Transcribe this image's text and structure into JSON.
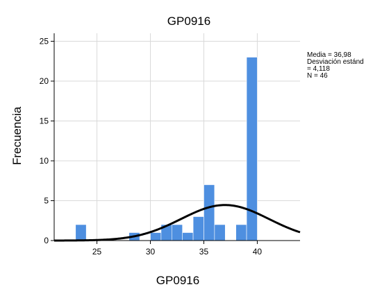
{
  "chart_data": {
    "type": "bar",
    "title": "GP0916",
    "xlabel": "GP0916",
    "ylabel": "Frecuencia",
    "xlim": [
      21,
      44
    ],
    "ylim": [
      0,
      26
    ],
    "bin_width": 1,
    "x_ticks": [
      "25",
      "30",
      "35",
      "40"
    ],
    "y_ticks": [
      "0",
      "5",
      "10",
      "15",
      "20",
      "25"
    ],
    "bins": [
      {
        "start": 23,
        "end": 24,
        "count": 2
      },
      {
        "start": 28,
        "end": 29,
        "count": 1
      },
      {
        "start": 30,
        "end": 31,
        "count": 1
      },
      {
        "start": 31,
        "end": 32,
        "count": 2
      },
      {
        "start": 32,
        "end": 33,
        "count": 2
      },
      {
        "start": 33,
        "end": 34,
        "count": 1
      },
      {
        "start": 34,
        "end": 35,
        "count": 3
      },
      {
        "start": 35,
        "end": 36,
        "count": 7
      },
      {
        "start": 36,
        "end": 37,
        "count": 2
      },
      {
        "start": 38,
        "end": 39,
        "count": 2
      },
      {
        "start": 39,
        "end": 40,
        "count": 23
      }
    ],
    "normal_curve": {
      "mean": 36.98,
      "sd": 4.118,
      "n": 46
    },
    "stats": [
      "Media = 36,98",
      "Desviación estánd",
      "= 4,118",
      "N = 46"
    ],
    "grid": true,
    "colors": {
      "bar": "#4e8fe0",
      "curve": "#000000",
      "grid": "#d9d9d9"
    }
  }
}
